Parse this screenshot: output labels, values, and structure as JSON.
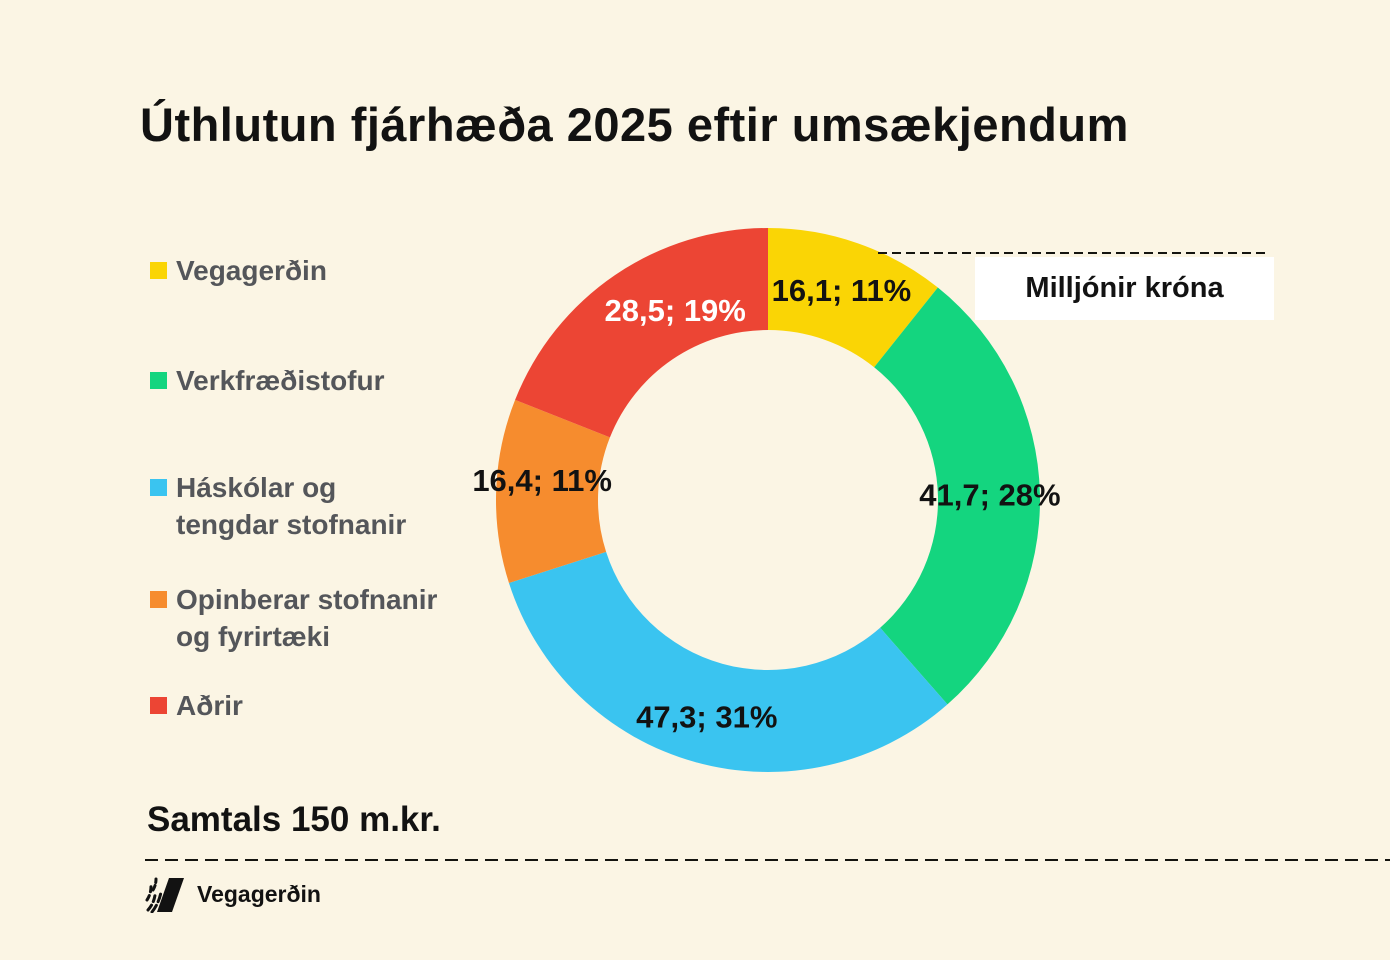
{
  "page": {
    "background": "#FBF5E4",
    "accent_black": "#121212",
    "legend_text_color": "#54565A"
  },
  "header": {
    "title": "Úthlutun fjárhæða 2025 eftir umsækjendum"
  },
  "annotations": {
    "unit_box": "Milljónir króna"
  },
  "footer": {
    "total": "Samtals 150 m.kr.",
    "brand": "Vegagerðin"
  },
  "chart_data": {
    "type": "pie",
    "subtype": "donut",
    "title": "Úthlutun fjárhæða 2025 eftir umsækjendum",
    "unit": "Milljónir króna",
    "total_value": 150,
    "total_label": "Samtals 150 m.kr.",
    "legend_position": "left",
    "start_angle_deg": 0,
    "direction": "clockwise",
    "categories": [
      "Vegagerðin",
      "Verkfræðistofur",
      "Háskólar og tengdar stofnanir",
      "Opinberar stofnanir og fyrirtæki",
      "Aðrir"
    ],
    "values": [
      16.1,
      41.7,
      47.3,
      16.4,
      28.5
    ],
    "percents": [
      11,
      28,
      31,
      11,
      19
    ],
    "slices": [
      {
        "label": "Vegagerðin",
        "legend_lines": [
          "Vegagerðin"
        ],
        "value": 16.1,
        "percent": 11,
        "data_label": "16,1; 11%",
        "color": "#FAD505",
        "label_color": "#121212"
      },
      {
        "label": "Verkfræðistofur",
        "legend_lines": [
          "Verkfræðistofur"
        ],
        "value": 41.7,
        "percent": 28,
        "data_label": "41,7; 28%",
        "color": "#14D57F",
        "label_color": "#121212"
      },
      {
        "label": "Háskólar og tengdar stofnanir",
        "legend_lines": [
          "Háskólar og",
          "tengdar stofnanir"
        ],
        "value": 47.3,
        "percent": 31,
        "data_label": "47,3; 31%",
        "color": "#3AC4F0",
        "label_color": "#121212"
      },
      {
        "label": "Opinberar stofnanir og fyrirtæki",
        "legend_lines": [
          "Opinberar stofnanir",
          "og fyrirtæki"
        ],
        "value": 16.4,
        "percent": 11,
        "data_label": "16,4; 11%",
        "color": "#F68C2E",
        "label_color": "#121212"
      },
      {
        "label": "Aðrir",
        "legend_lines": [
          "Aðrir"
        ],
        "value": 28.5,
        "percent": 19,
        "data_label": "28,5; 19%",
        "color": "#EC4534",
        "label_color": "#FFFFFF"
      }
    ]
  }
}
